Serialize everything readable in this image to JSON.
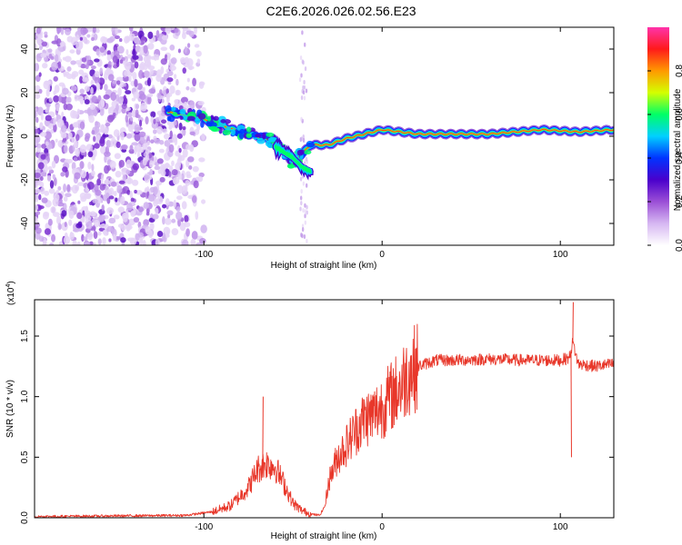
{
  "figure_title": "C2E6.2026.026.02.56.E23",
  "chart_data": [
    {
      "type": "heatmap",
      "xlabel": "Height of straight line (km)",
      "ylabel": "Frequency (Hz)",
      "xlim": [
        -195,
        130
      ],
      "ylim": [
        -50,
        50
      ],
      "xticks": [
        -100,
        0,
        100
      ],
      "yticks": [
        -40,
        -20,
        0,
        20,
        40
      ],
      "colorbar": {
        "label": "Normalized spectral amplitude",
        "range": [
          0,
          1
        ],
        "ticks": [
          "0.0",
          "0.2",
          "0.4",
          "0.6",
          "0.8"
        ],
        "colors": [
          "#ffffff",
          "#d6b7f2",
          "#9b4fd6",
          "#4a00cc",
          "#0033ff",
          "#00d0ff",
          "#00ff66",
          "#d4ff00",
          "#ff9900",
          "#ff1a1a",
          "#ff33aa"
        ]
      },
      "noise_region": {
        "x_from": -195,
        "x_to": -100,
        "f_from": -50,
        "f_to": 50
      },
      "ridge": {
        "x": [
          -120,
          -100,
          -80,
          -60,
          -50,
          -40,
          -30,
          -20,
          -10,
          0,
          10,
          20,
          60,
          90,
          110,
          130
        ],
        "freq": [
          11,
          8,
          2,
          -2,
          -12,
          -4,
          -4,
          -1,
          1,
          3,
          2,
          1,
          1,
          3,
          2,
          3
        ]
      },
      "secondary_branch": {
        "x": [
          -60,
          -50,
          -45,
          -40
        ],
        "freq": [
          -5,
          -10,
          -14,
          -16
        ]
      }
    },
    {
      "type": "line",
      "xlabel": "Height of straight line (km)",
      "ylabel": "SNR (10 * v/v)",
      "scale_label": "(x10",
      "scale_exponent": "4",
      "xlim": [
        -195,
        130
      ],
      "ylim": [
        0,
        1.8
      ],
      "xticks": [
        -100,
        0,
        100
      ],
      "yticks": [
        "0.0",
        "0.5",
        "1.0",
        "1.5"
      ],
      "series": [
        {
          "name": "SNR",
          "color": "#e8372a",
          "x": [
            -195,
            -110,
            -95,
            -85,
            -75,
            -70,
            -65,
            -60,
            -55,
            -50,
            -45,
            -40,
            -35,
            -32,
            -30,
            -25,
            -20,
            -15,
            -10,
            -5,
            0,
            5,
            10,
            15,
            20,
            30,
            40,
            60,
            80,
            90,
            100,
            105,
            107,
            110,
            120,
            130
          ],
          "y": [
            0.01,
            0.02,
            0.05,
            0.1,
            0.25,
            0.4,
            0.45,
            0.42,
            0.28,
            0.12,
            0.06,
            0.03,
            0.02,
            0.1,
            0.3,
            0.5,
            0.6,
            0.72,
            0.82,
            0.85,
            0.92,
            1.0,
            1.08,
            1.2,
            1.25,
            1.3,
            1.3,
            1.31,
            1.3,
            1.3,
            1.3,
            1.32,
            1.45,
            1.27,
            1.25,
            1.27
          ],
          "spikes": [
            {
              "x": -67,
              "y": 1.0
            },
            {
              "x": 107,
              "y": 1.78
            },
            {
              "x": 106,
              "y": 0.5
            }
          ]
        }
      ]
    }
  ]
}
